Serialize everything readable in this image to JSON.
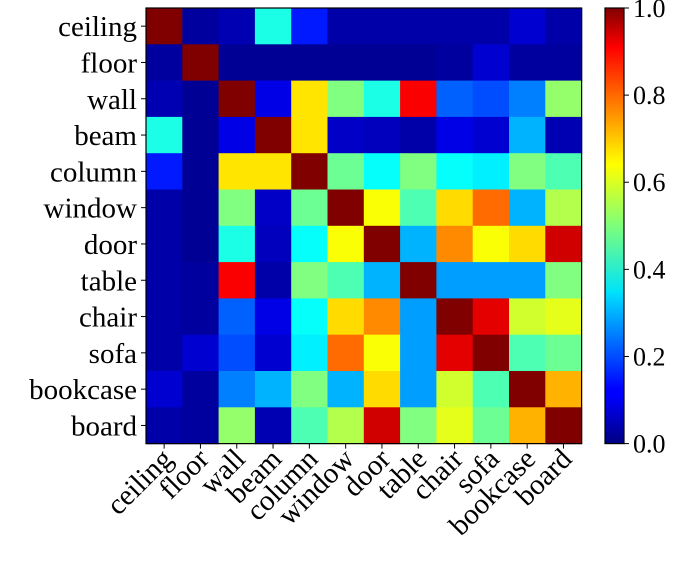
{
  "chart_data": {
    "type": "heatmap",
    "title": "",
    "xlabel": "",
    "ylabel": "",
    "rows": [
      "ceiling",
      "floor",
      "wall",
      "beam",
      "column",
      "window",
      "door",
      "table",
      "chair",
      "sofa",
      "bookcase",
      "board"
    ],
    "columns": [
      "ceiling",
      "floor",
      "wall",
      "beam",
      "column",
      "window",
      "door",
      "table",
      "chair",
      "sofa",
      "bookcase",
      "board"
    ],
    "values": [
      [
        1.0,
        0.03,
        0.05,
        0.4,
        0.15,
        0.04,
        0.04,
        0.04,
        0.04,
        0.04,
        0.08,
        0.04
      ],
      [
        0.03,
        1.0,
        0.02,
        0.02,
        0.02,
        0.02,
        0.02,
        0.02,
        0.03,
        0.08,
        0.03,
        0.03
      ],
      [
        0.05,
        0.02,
        1.0,
        0.1,
        0.65,
        0.5,
        0.4,
        0.88,
        0.22,
        0.2,
        0.25,
        0.52
      ],
      [
        0.4,
        0.02,
        0.1,
        1.0,
        0.65,
        0.07,
        0.06,
        0.04,
        0.1,
        0.08,
        0.3,
        0.05
      ],
      [
        0.15,
        0.02,
        0.65,
        0.65,
        1.0,
        0.48,
        0.38,
        0.5,
        0.38,
        0.36,
        0.5,
        0.45
      ],
      [
        0.04,
        0.02,
        0.5,
        0.07,
        0.48,
        1.0,
        0.62,
        0.45,
        0.66,
        0.77,
        0.3,
        0.55
      ],
      [
        0.04,
        0.02,
        0.4,
        0.06,
        0.38,
        0.62,
        1.0,
        0.3,
        0.74,
        0.62,
        0.66,
        0.92
      ],
      [
        0.04,
        0.03,
        0.88,
        0.04,
        0.5,
        0.45,
        0.3,
        1.0,
        0.28,
        0.28,
        0.28,
        0.5
      ],
      [
        0.04,
        0.03,
        0.22,
        0.1,
        0.38,
        0.66,
        0.74,
        0.28,
        1.0,
        0.9,
        0.58,
        0.6
      ],
      [
        0.04,
        0.08,
        0.2,
        0.08,
        0.36,
        0.77,
        0.62,
        0.28,
        0.9,
        1.0,
        0.45,
        0.48
      ],
      [
        0.08,
        0.03,
        0.25,
        0.3,
        0.5,
        0.3,
        0.66,
        0.28,
        0.58,
        0.45,
        1.0,
        0.7
      ],
      [
        0.04,
        0.03,
        0.52,
        0.05,
        0.45,
        0.55,
        0.92,
        0.5,
        0.6,
        0.48,
        0.7,
        1.0
      ]
    ],
    "colorbar": {
      "range": [
        0.0,
        1.0
      ],
      "ticks": [
        "0.0",
        "0.2",
        "0.4",
        "0.6",
        "0.8",
        "1.0"
      ],
      "colormap": "jet"
    },
    "grid": false,
    "legend": "colorbar right"
  }
}
